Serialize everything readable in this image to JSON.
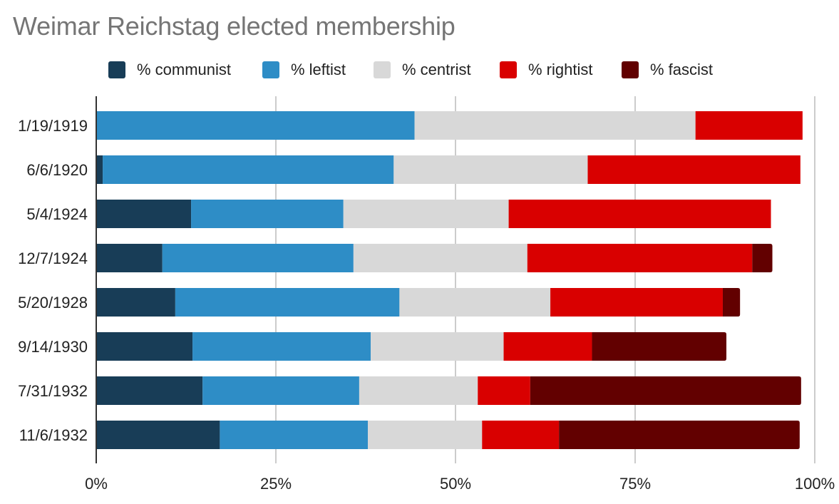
{
  "chart_data": {
    "type": "bar",
    "orientation": "horizontal",
    "stacked": true,
    "title": "Weimar Reichstag elected membership",
    "xlabel": "",
    "ylabel": "",
    "xlim": [
      0,
      100
    ],
    "x_unit": "%",
    "grid": true,
    "legend_position": "top-center",
    "xticks": [
      "0%",
      "25%",
      "50%",
      "75%",
      "100%"
    ],
    "xtick_values": [
      0,
      25,
      50,
      75,
      100
    ],
    "categories": [
      "1/19/1919",
      "6/6/1920",
      "5/4/1924",
      "12/7/1924",
      "5/20/1928",
      "9/14/1930",
      "7/31/1932",
      "11/6/1932"
    ],
    "series": [
      {
        "name": "% communist",
        "color": "#183d57",
        "values": [
          0.0,
          0.9,
          13.2,
          9.2,
          11.0,
          13.4,
          14.8,
          17.2
        ]
      },
      {
        "name": "% leftist",
        "color": "#2e8dc6",
        "values": [
          44.3,
          40.5,
          21.2,
          26.6,
          31.2,
          24.8,
          21.8,
          20.6
        ]
      },
      {
        "name": "% centrist",
        "color": "#d8d8d8",
        "values": [
          39.1,
          27.0,
          23.0,
          24.2,
          21.0,
          18.5,
          16.5,
          15.9
        ]
      },
      {
        "name": "% rightist",
        "color": "#d90000",
        "values": [
          14.9,
          29.6,
          36.5,
          31.3,
          24.0,
          12.3,
          7.3,
          10.7
        ]
      },
      {
        "name": "% fascist",
        "color": "#620000",
        "values": [
          0.0,
          0.0,
          0.0,
          2.8,
          2.4,
          18.7,
          37.7,
          33.5
        ]
      }
    ]
  },
  "colors": {
    "title": "#757575",
    "text": "#222222",
    "gridline": "#cccccc",
    "axis": "#333333"
  }
}
